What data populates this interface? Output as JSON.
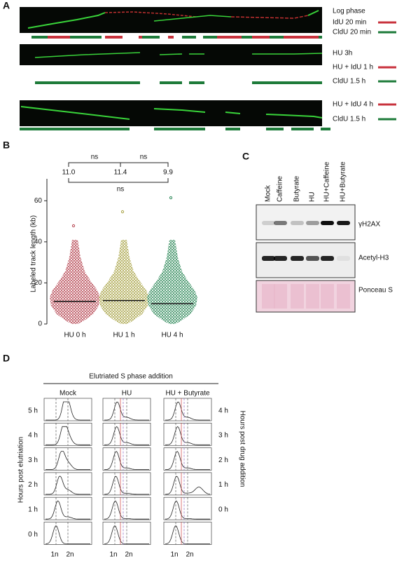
{
  "panel_labels": [
    "A",
    "B",
    "C",
    "D"
  ],
  "panel_a": {
    "rows": [
      {
        "labels": [
          "Log phase",
          "IdU 20 min",
          "CldU 20 min"
        ]
      },
      {
        "labels": [
          "HU 3h",
          "HU + IdU 1 h",
          "CldU 1.5 h"
        ]
      },
      {
        "labels": [
          "HU + IdU 4 h",
          "CldU 1.5 h"
        ]
      }
    ]
  },
  "chart_data": {
    "type": "dotplot",
    "ylabel": "Labeled track length (kb)",
    "categories": [
      "HU 0 h",
      "HU 1 h",
      "HU 4 h"
    ],
    "values": [
      11.0,
      11.4,
      9.9
    ],
    "value_labels": [
      "11.0",
      "11.4",
      "9.9"
    ],
    "colors": [
      "#b5434f",
      "#a9a447",
      "#2f8a5a"
    ],
    "ylim": [
      0,
      70
    ],
    "yticks": [
      0,
      20,
      40,
      60
    ],
    "comparison_labels": [
      "ns",
      "ns",
      "ns"
    ]
  },
  "panel_c": {
    "lanes": [
      "Mock",
      "Caffeine",
      "Butyrate",
      "HU",
      "HU+Caffeine",
      "HU+Butyrate"
    ],
    "blots": [
      "γH2AX",
      "Acetyl-H3",
      "Ponceau S"
    ]
  },
  "panel_d": {
    "title": "Elutriated S phase addition",
    "columns": [
      "Mock",
      "HU",
      "HU + Butyrate"
    ],
    "left_axis": "Hours post elutriation",
    "left_rows": [
      "5 h",
      "4 h",
      "3 h",
      "2 h",
      "1 h",
      "0 h"
    ],
    "right_axis": "Hours post drug addition",
    "right_rows": [
      "4 h",
      "3 h",
      "2 h",
      "1 h",
      "0 h"
    ],
    "x_labels": [
      "1n",
      "2n"
    ]
  }
}
